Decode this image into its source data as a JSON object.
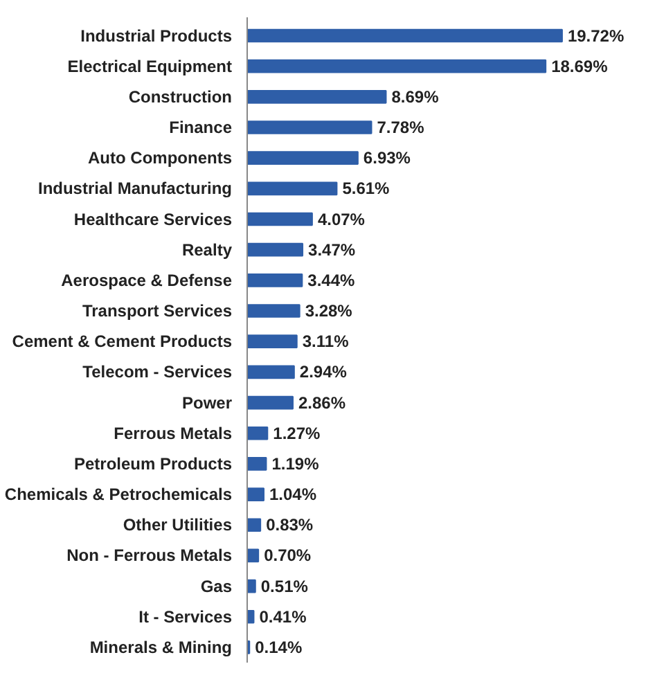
{
  "chart_data": {
    "type": "bar",
    "orientation": "horizontal",
    "categories": [
      "Industrial Products",
      "Electrical Equipment",
      "Construction",
      "Finance",
      "Auto Components",
      "Industrial Manufacturing",
      "Healthcare Services",
      "Realty",
      "Aerospace & Defense",
      "Transport Services",
      "Cement & Cement Products",
      "Telecom - Services",
      "Power",
      "Ferrous Metals",
      "Petroleum Products",
      "Chemicals & Petrochemicals",
      "Other Utilities",
      "Non - Ferrous Metals",
      "Gas",
      "It - Services",
      "Minerals & Mining"
    ],
    "values": [
      19.72,
      18.69,
      8.69,
      7.78,
      6.93,
      5.61,
      4.07,
      3.47,
      3.44,
      3.28,
      3.11,
      2.94,
      2.86,
      1.27,
      1.19,
      1.04,
      0.83,
      0.7,
      0.51,
      0.41,
      0.14
    ],
    "value_labels": [
      "19.72%",
      "18.69%",
      "8.69%",
      "7.78%",
      "6.93%",
      "5.61%",
      "4.07%",
      "3.47%",
      "3.44%",
      "3.28%",
      "3.11%",
      "2.94%",
      "2.86%",
      "1.27%",
      "1.19%",
      "1.04%",
      "0.83%",
      "0.70%",
      "0.51%",
      "0.41%",
      "0.14%"
    ],
    "color": "#2e5ea8",
    "tick_labels": "y"
  }
}
